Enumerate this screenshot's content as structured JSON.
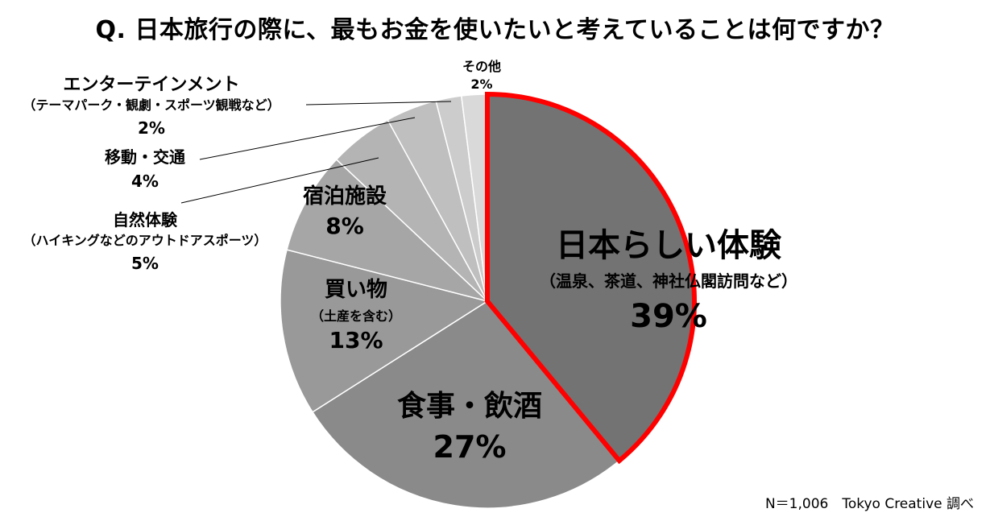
{
  "chart_data": {
    "type": "pie",
    "title": "Q. 日本旅行の際に、最もお金を使いたいと考えていることは何ですか？",
    "slices": [
      {
        "label": "日本らしい体験",
        "sub": "（温泉、茶道、神社仏閣訪問など）",
        "value": 39,
        "value_label": "39%",
        "color": "#737373",
        "highlight": "#ff0000"
      },
      {
        "label": "食事・飲酒",
        "sub": "",
        "value": 27,
        "value_label": "27%",
        "color": "#8a8a8a"
      },
      {
        "label": "買い物",
        "sub": "（土産を含む）",
        "value": 13,
        "value_label": "13%",
        "color": "#999999"
      },
      {
        "label": "宿泊施設",
        "sub": "",
        "value": 8,
        "value_label": "8%",
        "color": "#a6a6a6"
      },
      {
        "label": "自然体験",
        "sub": "（ハイキングなどのアウトドアスポーツ）",
        "value": 5,
        "value_label": "5%",
        "color": "#b4b4b4"
      },
      {
        "label": "移動・交通",
        "sub": "",
        "value": 4,
        "value_label": "4%",
        "color": "#bfbfbf"
      },
      {
        "label": "エンターテインメント",
        "sub": "（テーマパーク・観劇・スポーツ観戦など）",
        "value": 2,
        "value_label": "2%",
        "color": "#cccccc"
      },
      {
        "label": "その他",
        "sub": "",
        "value": 2,
        "value_label": "2%",
        "color": "#d9d9d9"
      }
    ]
  },
  "footnote": "N＝1,006　Tokyo Creative 調べ"
}
